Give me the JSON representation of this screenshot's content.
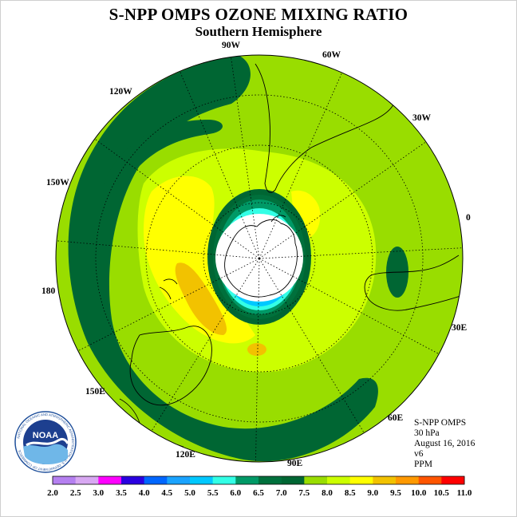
{
  "title": "S-NPP OMPS OZONE MIXING RATIO",
  "subtitle": "Southern Hemisphere",
  "info": {
    "instrument": "S-NPP OMPS",
    "level": "30 hPa",
    "date": "August 16, 2016",
    "version": "v6",
    "units": "PPM"
  },
  "logo": {
    "text": "NOAA",
    "ring_text": "NATIONAL OCEANIC AND ATMOSPHERIC ADMINISTRATION · U.S. DEPARTMENT OF COMMERCE"
  },
  "longitude_labels": [
    "90W",
    "60W",
    "30W",
    "0",
    "30E",
    "60E",
    "90E",
    "120E",
    "150E",
    "180",
    "150W",
    "120W"
  ],
  "colorbar": {
    "ticks": [
      "2.0",
      "2.5",
      "3.0",
      "3.5",
      "4.0",
      "4.5",
      "5.0",
      "5.5",
      "6.0",
      "6.5",
      "7.0",
      "7.5",
      "8.0",
      "8.5",
      "9.0",
      "9.5",
      "10.0",
      "10.5",
      "11.0"
    ],
    "colors": [
      "#b580f0",
      "#d8a8f2",
      "#ff00ff",
      "#2a00e0",
      "#0066ff",
      "#1aa3ff",
      "#00c8ff",
      "#33ffe6",
      "#009966",
      "#00703c",
      "#006633",
      "#99dd00",
      "#ccff00",
      "#ffff00",
      "#f2c200",
      "#ff9900",
      "#ff5500",
      "#ff0000",
      "#7a4e2e"
    ]
  },
  "colors": {
    "outer_ring": "#006633",
    "background_field": "#99dd00",
    "low_ozone": "#ccff00",
    "high_ozone": "#ffff00",
    "peak_ozone": "#f2c200",
    "hole_inner": "#00c8ff",
    "hole_edge": "#33ffe6",
    "polar_cap": "#ffffff"
  }
}
